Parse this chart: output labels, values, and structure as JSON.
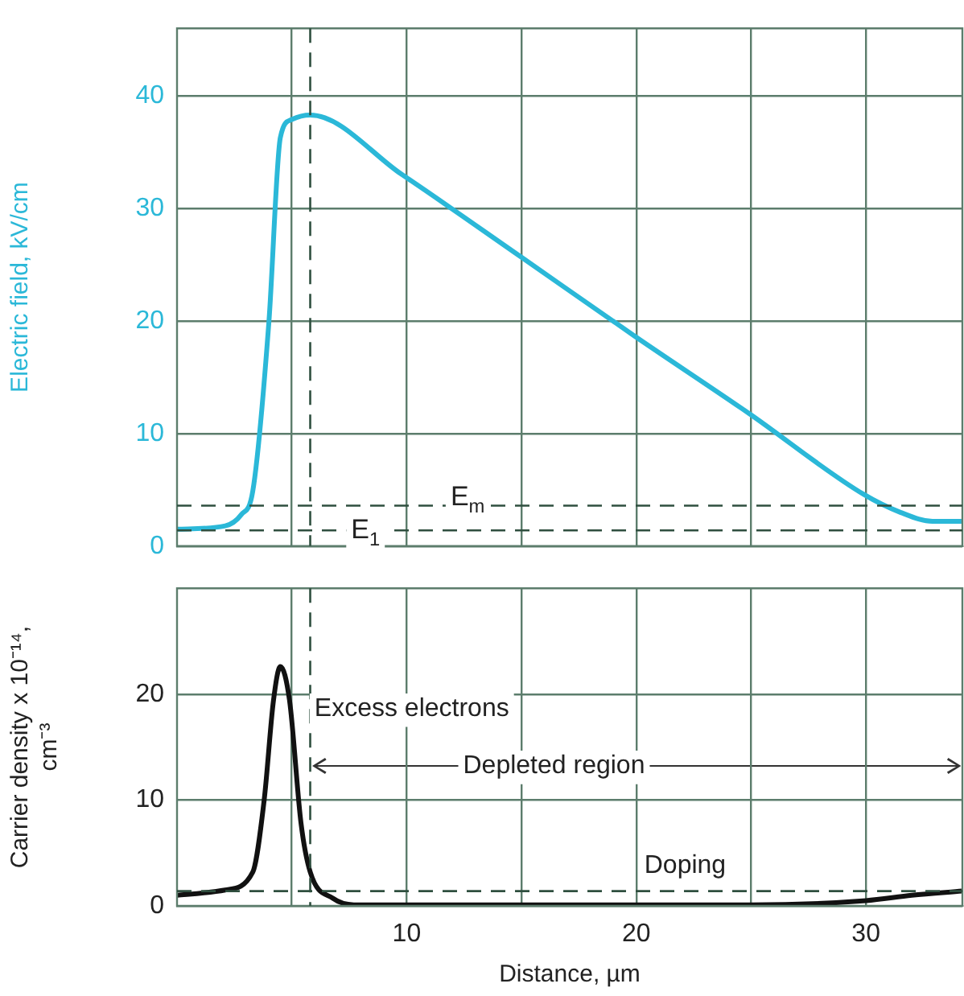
{
  "chart_data": [
    {
      "type": "line",
      "ylabel": "Electric field, kV/cm",
      "x": [
        0,
        2.1,
        2.8,
        3.3,
        4.0,
        4.5,
        5.0,
        5.8,
        9.8,
        14.9,
        19.9,
        24.9,
        29.9,
        31.5,
        32.9,
        34.2
      ],
      "series": [
        {
          "color": "#2bb8d8",
          "values": [
            1.5,
            1.8,
            2.8,
            4.9,
            19.9,
            36.3,
            37.9,
            38.3,
            33.0,
            25.8,
            18.7,
            11.8,
            4.6,
            3.0,
            2.2,
            2.2
          ]
        }
      ],
      "xlim": [
        0,
        34.2
      ],
      "xticks": [
        {
          "value": 5,
          "label": null
        },
        {
          "value": 10,
          "label": null
        },
        {
          "value": 15,
          "label": null
        },
        {
          "value": 20,
          "label": null
        },
        {
          "value": 25,
          "label": null
        },
        {
          "value": 30,
          "label": null
        }
      ],
      "ylim": [
        0,
        46
      ],
      "yticks": [
        0,
        10,
        20,
        30,
        40
      ],
      "ref_lines": [
        {
          "axis": "y",
          "value": 3.6,
          "label": "E$_{m}$",
          "line_style": "dashed",
          "color": "#2f4f3f"
        },
        {
          "axis": "y",
          "value": 1.4,
          "label": "E$_{1}$",
          "line_style": "dashed",
          "color": "#2f4f3f"
        },
        {
          "axis": "x",
          "value": 5.8,
          "line_style": "dashed",
          "color": "#2f4f3f"
        }
      ],
      "grid": true,
      "legend": false,
      "marker": "none",
      "line_style": "solid",
      "tick_labels": "y"
    },
    {
      "type": "line",
      "ylabel": "Carrier density x 10⁻¹⁴, cm⁻³",
      "xlabel": "Distance, µm",
      "x": [
        0,
        2.1,
        3.3,
        3.8,
        4.2,
        4.5,
        4.9,
        5.4,
        5.8,
        6.8,
        7.7,
        15,
        25,
        30,
        32,
        34.2
      ],
      "series": [
        {
          "color": "#111111",
          "values": [
            1.0,
            1.5,
            3.2,
            10.1,
            19.4,
            22.6,
            19.4,
            7.8,
            3.2,
            0.7,
            0.1,
            0.1,
            0.1,
            0.5,
            1.0,
            1.4
          ]
        }
      ],
      "xlim": [
        0,
        34.2
      ],
      "xticks": [
        {
          "value": 5,
          "label": null
        },
        {
          "value": 10,
          "label": "10"
        },
        {
          "value": 15,
          "label": null
        },
        {
          "value": 20,
          "label": "20"
        },
        {
          "value": 25,
          "label": null
        },
        {
          "value": 30,
          "label": "30"
        }
      ],
      "ylim": [
        0,
        30
      ],
      "yticks": [
        0,
        10,
        20
      ],
      "ref_lines": [
        {
          "axis": "x",
          "value": 5.8,
          "line_style": "dashed",
          "color": "#2f4f3f"
        },
        {
          "axis": "y",
          "value": 1.4,
          "line_style": "dashed",
          "color": "#2f4f3f"
        }
      ],
      "annotations": [
        "Excess electrons",
        "Depleted region",
        "Doping"
      ],
      "grid": true,
      "legend": false,
      "marker": "none",
      "line_style": "solid"
    }
  ]
}
